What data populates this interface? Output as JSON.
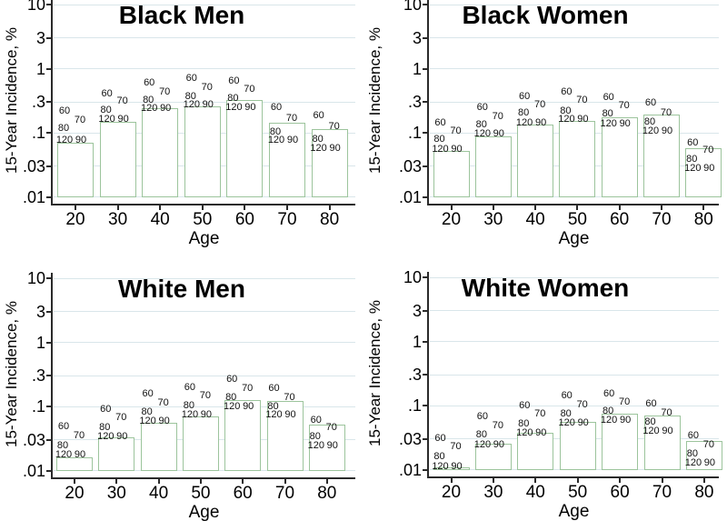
{
  "figure": {
    "axes": {
      "ylabel": "15-Year Incidence, %",
      "xlabel": "Age",
      "y_ticks": [
        "10",
        "3",
        "1",
        ".3",
        ".1",
        ".03",
        ".01"
      ],
      "y_tick_values": [
        10,
        3,
        1,
        0.3,
        0.1,
        0.03,
        0.01
      ],
      "x_ticks": [
        "20",
        "30",
        "40",
        "50",
        "60",
        "70",
        "80"
      ]
    },
    "colors": {
      "bar_outline": "#9cc49c",
      "bar_fill": "#ffffff",
      "gridline": "#d9e6ea",
      "axis": "#2a2a2a",
      "text": "#000000",
      "marker_text": "#111111"
    }
  },
  "chart_data": [
    {
      "type": "bar",
      "title": "Black Men",
      "xlabel": "Age",
      "ylabel": "15-Year Incidence, %",
      "yscale": "log",
      "ylim": [
        0.01,
        10
      ],
      "categories": [
        20,
        30,
        40,
        50,
        60,
        70,
        80
      ],
      "bar_values": [
        0.07,
        0.146,
        0.243,
        0.26,
        0.32,
        0.145,
        0.115
      ],
      "label_series": [
        {
          "label": "60",
          "values": [
            0.21,
            0.4,
            0.58,
            0.68,
            0.62,
            0.24,
            0.18
          ]
        },
        {
          "label": "70",
          "values": [
            0.155,
            0.3,
            0.42,
            0.5,
            0.46,
            0.165,
            0.12
          ]
        },
        {
          "label": "80",
          "values": [
            0.115,
            0.22,
            0.31,
            0.36,
            0.34,
            0.1,
            0.078
          ]
        },
        {
          "label": "120",
          "values": [
            0.074,
            0.16,
            0.235,
            0.265,
            0.24,
            0.075,
            0.056
          ]
        },
        {
          "label": "90",
          "values": [
            0.074,
            0.16,
            0.235,
            0.265,
            0.24,
            0.075,
            0.056
          ]
        }
      ]
    },
    {
      "type": "bar",
      "title": "Black Women",
      "xlabel": "Age",
      "ylabel": "15-Year Incidence, %",
      "yscale": "log",
      "ylim": [
        0.01,
        10
      ],
      "categories": [
        20,
        30,
        40,
        50,
        60,
        70,
        80
      ],
      "bar_values": [
        0.052,
        0.089,
        0.134,
        0.152,
        0.175,
        0.19,
        0.057
      ],
      "label_series": [
        {
          "label": "60",
          "values": [
            0.14,
            0.24,
            0.36,
            0.42,
            0.35,
            0.28,
            0.068
          ]
        },
        {
          "label": "70",
          "values": [
            0.104,
            0.175,
            0.265,
            0.31,
            0.26,
            0.2,
            0.052
          ]
        },
        {
          "label": "80",
          "values": [
            0.076,
            0.13,
            0.196,
            0.21,
            0.19,
            0.141,
            0.038
          ]
        },
        {
          "label": "120",
          "values": [
            0.054,
            0.095,
            0.14,
            0.156,
            0.136,
            0.104,
            0.0275
          ]
        },
        {
          "label": "90",
          "values": [
            0.054,
            0.095,
            0.14,
            0.156,
            0.136,
            0.104,
            0.0275
          ]
        }
      ]
    },
    {
      "type": "bar",
      "title": "White Men",
      "xlabel": "Age",
      "ylabel": "15-Year Incidence, %",
      "yscale": "log",
      "ylim": [
        0.01,
        10
      ],
      "categories": [
        20,
        30,
        40,
        50,
        60,
        70,
        80
      ],
      "bar_values": [
        0.016,
        0.033,
        0.056,
        0.07,
        0.127,
        0.122,
        0.052
      ],
      "label_series": [
        {
          "label": "60",
          "values": [
            0.047,
            0.088,
            0.152,
            0.192,
            0.258,
            0.185,
            0.06
          ]
        },
        {
          "label": "70",
          "values": [
            0.034,
            0.065,
            0.11,
            0.143,
            0.186,
            0.135,
            0.045
          ]
        },
        {
          "label": "80",
          "values": [
            0.024,
            0.046,
            0.079,
            0.1,
            0.134,
            0.098,
            0.033
          ]
        },
        {
          "label": "120",
          "values": [
            0.017,
            0.033,
            0.058,
            0.072,
            0.097,
            0.071,
            0.0235
          ]
        },
        {
          "label": "90",
          "values": [
            0.017,
            0.033,
            0.058,
            0.072,
            0.097,
            0.071,
            0.0235
          ]
        }
      ]
    },
    {
      "type": "bar",
      "title": "White Women",
      "xlabel": "Age",
      "ylabel": "15-Year Incidence, %",
      "yscale": "log",
      "ylim": [
        0.01,
        10
      ],
      "categories": [
        20,
        30,
        40,
        50,
        60,
        70,
        80
      ],
      "bar_values": [
        0.0107,
        0.025,
        0.0375,
        0.055,
        0.074,
        0.07,
        0.028
      ],
      "label_series": [
        {
          "label": "60",
          "values": [
            0.03,
            0.065,
            0.096,
            0.14,
            0.15,
            0.105,
            0.033
          ]
        },
        {
          "label": "70",
          "values": [
            0.022,
            0.047,
            0.071,
            0.101,
            0.111,
            0.075,
            0.0235
          ]
        },
        {
          "label": "80",
          "values": [
            0.0156,
            0.0335,
            0.05,
            0.0725,
            0.079,
            0.054,
            0.017
          ]
        },
        {
          "label": "120",
          "values": [
            0.011,
            0.024,
            0.036,
            0.052,
            0.057,
            0.039,
            0.0123
          ]
        },
        {
          "label": "90",
          "values": [
            0.011,
            0.024,
            0.036,
            0.052,
            0.057,
            0.039,
            0.0123
          ]
        }
      ]
    }
  ]
}
